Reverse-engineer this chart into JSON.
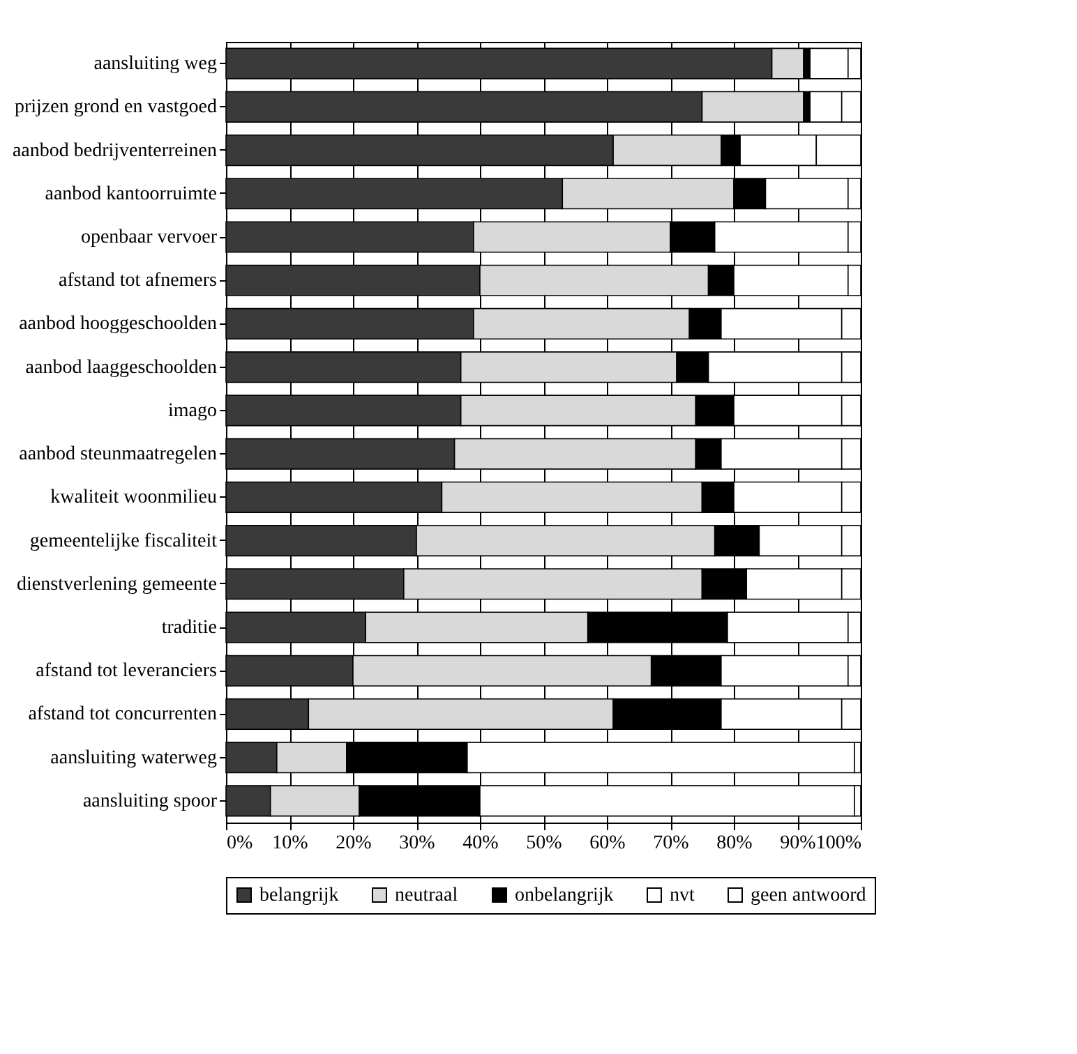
{
  "chart_data": {
    "type": "bar",
    "orientation": "horizontal",
    "stacked": true,
    "categories": [
      "aansluiting weg",
      "prijzen grond en vastgoed",
      "aanbod bedrijventerreinen",
      "aanbod kantoorruimte",
      "openbaar vervoer",
      "afstand tot afnemers",
      "aanbod hooggeschoolden",
      "aanbod laaggeschoolden",
      "imago",
      "aanbod steunmaatregelen",
      "kwaliteit woonmilieu",
      "gemeentelijke fiscaliteit",
      "dienstverlening gemeente",
      "traditie",
      "afstand tot leveranciers",
      "afstand tot concurrenten",
      "aansluiting waterweg",
      "aansluiting spoor"
    ],
    "series": [
      {
        "name": "belangrijk",
        "color": "#3a3a3a",
        "values": [
          86,
          75,
          61,
          53,
          39,
          40,
          39,
          37,
          37,
          36,
          34,
          30,
          28,
          22,
          20,
          13,
          8,
          7
        ]
      },
      {
        "name": "neutraal",
        "color": "#d9d9d9",
        "values": [
          5,
          16,
          17,
          27,
          31,
          36,
          34,
          34,
          37,
          38,
          41,
          47,
          47,
          35,
          47,
          48,
          11,
          14
        ]
      },
      {
        "name": "onbelangrijk",
        "color": "#000000",
        "values": [
          1,
          1,
          3,
          5,
          7,
          4,
          5,
          5,
          6,
          4,
          5,
          7,
          7,
          22,
          11,
          17,
          19,
          19
        ]
      },
      {
        "name": "nvt",
        "color": "#ffffff",
        "values": [
          6,
          5,
          12,
          13,
          21,
          18,
          19,
          21,
          17,
          19,
          17,
          13,
          15,
          19,
          20,
          19,
          61,
          59
        ]
      },
      {
        "name": "geen antwoord",
        "color": "#ffffff",
        "values": [
          2,
          3,
          7,
          2,
          2,
          2,
          3,
          3,
          3,
          3,
          3,
          3,
          3,
          2,
          2,
          3,
          1,
          1
        ]
      }
    ],
    "xlim": [
      0,
      100
    ],
    "xticks": [
      {
        "value": 0,
        "label": "0%"
      },
      {
        "value": 10,
        "label": "10%"
      },
      {
        "value": 20,
        "label": "20%"
      },
      {
        "value": 30,
        "label": "30%"
      },
      {
        "value": 40,
        "label": "40%"
      },
      {
        "value": 50,
        "label": "50%"
      },
      {
        "value": 60,
        "label": "60%"
      },
      {
        "value": 70,
        "label": "70%"
      },
      {
        "value": 80,
        "label": "80%"
      },
      {
        "value": 90,
        "label": "90%"
      },
      {
        "value": 100,
        "label": "100%"
      }
    ],
    "grid": "x",
    "legend": "bottom"
  }
}
